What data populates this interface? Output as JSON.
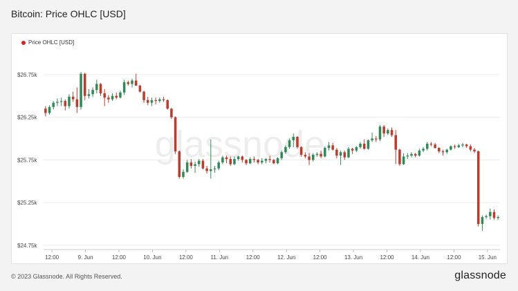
{
  "header": {
    "title": "Bitcoin: Price OHLC [USD]"
  },
  "footer": {
    "copyright": "© 2023 Glassnode. All Rights Reserved.",
    "logo": "glassnode"
  },
  "watermark": "glassnode",
  "colors": {
    "up": "#2e8b57",
    "down": "#c0392b",
    "grid": "#ececec",
    "legend_dot": "#e02020"
  },
  "chart_data": {
    "type": "candlestick",
    "title": "Bitcoin: Price OHLC [USD]",
    "legend": [
      {
        "name": "Price OHLC [USD]",
        "color": "#e02020"
      }
    ],
    "legend_position": "top-left",
    "grid": true,
    "ylim": [
      24700,
      27000
    ],
    "yticks": [
      {
        "value": 24750,
        "label": "$24.75k"
      },
      {
        "value": 25250,
        "label": "$25.25k"
      },
      {
        "value": 25750,
        "label": "$25.75k"
      },
      {
        "value": 26250,
        "label": "$26.25k"
      },
      {
        "value": 26750,
        "label": "$26.75k"
      }
    ],
    "xlim": [
      8.375,
      15.1875
    ],
    "xticks": [
      {
        "value": 8.5,
        "label": "12:00"
      },
      {
        "value": 9,
        "label": "9. Jun"
      },
      {
        "value": 9.5,
        "label": "12:00"
      },
      {
        "value": 10,
        "label": "10. Jun"
      },
      {
        "value": 10.5,
        "label": "12:00"
      },
      {
        "value": 11,
        "label": "11. Jun"
      },
      {
        "value": 11.5,
        "label": "12:00"
      },
      {
        "value": 12,
        "label": "12. Jun"
      },
      {
        "value": 12.5,
        "label": "12:00"
      },
      {
        "value": 13,
        "label": "13. Jun"
      },
      {
        "value": 13.5,
        "label": "12:00"
      },
      {
        "value": 14,
        "label": "14. Jun"
      },
      {
        "value": 14.5,
        "label": "12:00"
      },
      {
        "value": 15,
        "label": "15. Jun"
      }
    ],
    "candles": [
      [
        26350,
        26380,
        26260,
        26300
      ],
      [
        26300,
        26390,
        26280,
        26370
      ],
      [
        26370,
        26440,
        26340,
        26420
      ],
      [
        26420,
        26470,
        26380,
        26430
      ],
      [
        26430,
        26480,
        26380,
        26440
      ],
      [
        26440,
        26460,
        26330,
        26380
      ],
      [
        26380,
        26520,
        26350,
        26490
      ],
      [
        26490,
        26550,
        26430,
        26460
      ],
      [
        26460,
        26600,
        26300,
        26370
      ],
      [
        26370,
        26780,
        26340,
        26760
      ],
      [
        26760,
        26770,
        26450,
        26500
      ],
      [
        26500,
        26580,
        26470,
        26520
      ],
      [
        26520,
        26600,
        26490,
        26570
      ],
      [
        26570,
        26690,
        26530,
        26640
      ],
      [
        26640,
        26650,
        26500,
        26530
      ],
      [
        26530,
        26580,
        26380,
        26480
      ],
      [
        26480,
        26510,
        26420,
        26460
      ],
      [
        26460,
        26530,
        26440,
        26500
      ],
      [
        26500,
        26540,
        26460,
        26480
      ],
      [
        26480,
        26560,
        26470,
        26540
      ],
      [
        26540,
        26690,
        26510,
        26660
      ],
      [
        26660,
        26680,
        26620,
        26640
      ],
      [
        26640,
        26700,
        26600,
        26680
      ],
      [
        26680,
        26760,
        26620,
        26620
      ],
      [
        26620,
        26630,
        26540,
        26550
      ],
      [
        26550,
        26560,
        26420,
        26450
      ],
      [
        26450,
        26490,
        26390,
        26420
      ],
      [
        26420,
        26480,
        26380,
        26450
      ],
      [
        26450,
        26480,
        26400,
        26440
      ],
      [
        26440,
        26480,
        26420,
        26460
      ],
      [
        26460,
        26490,
        26430,
        26450
      ],
      [
        26450,
        26460,
        26340,
        26350
      ],
      [
        26350,
        26360,
        26230,
        26250
      ],
      [
        26250,
        26260,
        25820,
        25850
      ],
      [
        25850,
        25860,
        25530,
        25550
      ],
      [
        25550,
        25640,
        25530,
        25610
      ],
      [
        25610,
        25750,
        25600,
        25720
      ],
      [
        25720,
        25760,
        25650,
        25680
      ],
      [
        25680,
        25730,
        25600,
        25700
      ],
      [
        25700,
        25760,
        25670,
        25740
      ],
      [
        25740,
        25760,
        25640,
        25650
      ],
      [
        25650,
        25680,
        25590,
        25620
      ],
      [
        25620,
        25990,
        25530,
        25640
      ],
      [
        25640,
        25680,
        25600,
        25650
      ],
      [
        25650,
        25740,
        25630,
        25720
      ],
      [
        25720,
        25800,
        25700,
        25780
      ],
      [
        25780,
        25800,
        25710,
        25760
      ],
      [
        25760,
        25790,
        25680,
        25700
      ],
      [
        25700,
        25790,
        25690,
        25760
      ],
      [
        25760,
        25800,
        25740,
        25790
      ],
      [
        25790,
        25800,
        25720,
        25750
      ],
      [
        25750,
        25760,
        25690,
        25710
      ],
      [
        25710,
        25780,
        25700,
        25760
      ],
      [
        25760,
        25790,
        25720,
        25750
      ],
      [
        25750,
        25760,
        25700,
        25720
      ],
      [
        25720,
        25770,
        25700,
        25740
      ],
      [
        25740,
        25770,
        25710,
        25760
      ],
      [
        25760,
        25800,
        25720,
        25750
      ],
      [
        25750,
        25760,
        25700,
        25710
      ],
      [
        25710,
        25780,
        25700,
        25770
      ],
      [
        25770,
        25860,
        25750,
        25840
      ],
      [
        25840,
        25920,
        25820,
        25900
      ],
      [
        25900,
        26000,
        25880,
        25980
      ],
      [
        25980,
        26060,
        25900,
        26020
      ],
      [
        26020,
        26030,
        25880,
        25900
      ],
      [
        25900,
        25910,
        25790,
        25810
      ],
      [
        25810,
        25840,
        25770,
        25790
      ],
      [
        25790,
        25830,
        25690,
        25750
      ],
      [
        25750,
        25830,
        25730,
        25810
      ],
      [
        25810,
        25840,
        25790,
        25820
      ],
      [
        25820,
        25860,
        25770,
        25790
      ],
      [
        25790,
        25910,
        25780,
        25890
      ],
      [
        25890,
        25960,
        25860,
        25920
      ],
      [
        25920,
        25950,
        25860,
        25870
      ],
      [
        25870,
        25890,
        25770,
        25800
      ],
      [
        25800,
        25860,
        25690,
        25840
      ],
      [
        25840,
        25860,
        25750,
        25780
      ],
      [
        25780,
        25900,
        25770,
        25880
      ],
      [
        25880,
        25890,
        25820,
        25860
      ],
      [
        25860,
        25910,
        25840,
        25900
      ],
      [
        25900,
        25960,
        25880,
        25940
      ],
      [
        25940,
        25990,
        25870,
        25880
      ],
      [
        25880,
        25990,
        25870,
        25980
      ],
      [
        25980,
        26070,
        25960,
        26000
      ],
      [
        26000,
        26030,
        25960,
        25990
      ],
      [
        25990,
        26160,
        25970,
        26140
      ],
      [
        26140,
        26160,
        26020,
        26060
      ],
      [
        26060,
        26120,
        26040,
        26100
      ],
      [
        26100,
        26130,
        26020,
        26040
      ],
      [
        26040,
        26100,
        25700,
        25870
      ],
      [
        25870,
        25880,
        25680,
        25700
      ],
      [
        25700,
        25830,
        25690,
        25790
      ],
      [
        25790,
        25830,
        25760,
        25800
      ],
      [
        25800,
        25840,
        25780,
        25820
      ],
      [
        25820,
        25830,
        25780,
        25800
      ],
      [
        25800,
        25880,
        25790,
        25860
      ],
      [
        25860,
        25900,
        25840,
        25880
      ],
      [
        25880,
        25960,
        25860,
        25940
      ],
      [
        25940,
        25960,
        25910,
        25930
      ],
      [
        25930,
        25950,
        25880,
        25890
      ],
      [
        25890,
        25900,
        25830,
        25850
      ],
      [
        25850,
        25870,
        25800,
        25840
      ],
      [
        25840,
        25880,
        25820,
        25870
      ],
      [
        25870,
        25920,
        25860,
        25910
      ],
      [
        25910,
        25930,
        25880,
        25900
      ],
      [
        25900,
        25940,
        25890,
        25920
      ],
      [
        25920,
        25950,
        25900,
        25930
      ],
      [
        25930,
        25940,
        25890,
        25910
      ],
      [
        25910,
        25930,
        25850,
        25870
      ],
      [
        25870,
        25890,
        25830,
        25850
      ],
      [
        25850,
        25860,
        24970,
        25000
      ],
      [
        25000,
        25100,
        24920,
        25080
      ],
      [
        25080,
        25110,
        25060,
        25090
      ],
      [
        25090,
        25180,
        25050,
        25140
      ],
      [
        25140,
        25170,
        25050,
        25070
      ],
      [
        25070,
        25100,
        25050,
        25080
      ]
    ]
  }
}
